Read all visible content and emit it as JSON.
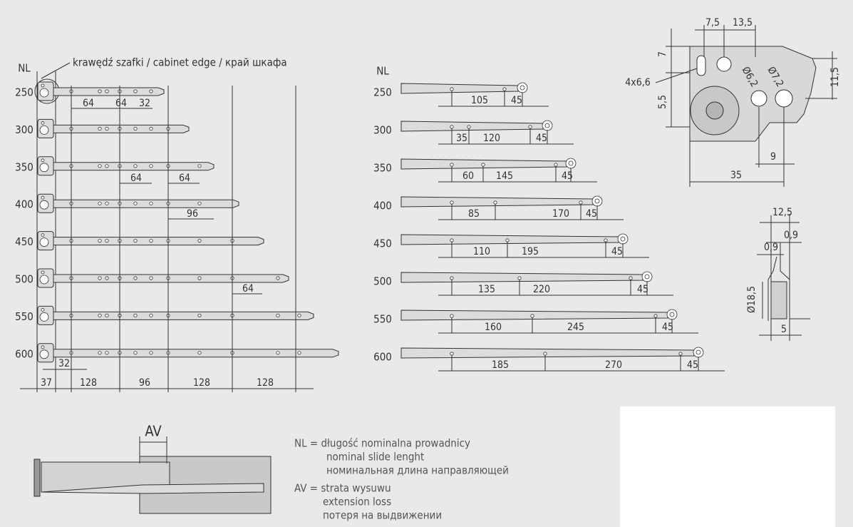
{
  "left_drawing": {
    "nl_label": "NL",
    "edge_label": "krawędź szafki / cabinet edge / край шкафа",
    "lengths": [
      "250",
      "300",
      "350",
      "400",
      "450",
      "500",
      "550",
      "600"
    ],
    "row_dimensions": [
      "64",
      "64",
      "32",
      "64",
      "64",
      "96",
      "64"
    ],
    "bottom_dimensions": [
      "32",
      "37",
      "128",
      "96",
      "128",
      "128"
    ]
  },
  "right_drawing": {
    "nl_label": "NL",
    "rows": [
      {
        "length": "250",
        "dims": [
          "105",
          "45"
        ]
      },
      {
        "length": "300",
        "dims": [
          "35",
          "120",
          "45"
        ]
      },
      {
        "length": "350",
        "dims": [
          "60",
          "145",
          "45"
        ]
      },
      {
        "length": "400",
        "dims": [
          "85",
          "170",
          "45"
        ]
      },
      {
        "length": "450",
        "dims": [
          "110",
          "195",
          "45"
        ]
      },
      {
        "length": "500",
        "dims": [
          "135",
          "220",
          "45"
        ]
      },
      {
        "length": "550",
        "dims": [
          "160",
          "245",
          "45"
        ]
      },
      {
        "length": "600",
        "dims": [
          "185",
          "270",
          "45"
        ]
      }
    ]
  },
  "bracket_detail": {
    "dims": [
      "7,5",
      "13,5",
      "7",
      "11,5",
      "4x6,6",
      "5,5",
      "Ø6,2",
      "Ø7,2",
      "9",
      "35"
    ]
  },
  "profile_detail": {
    "dims": [
      "12,5",
      "0,9",
      "0,9",
      "Ø18,5",
      "5"
    ]
  },
  "extension_loss": {
    "label": "AV"
  },
  "legend": {
    "lines": [
      "NL = długość nominalna prowadnicy",
      "nominal slide lenght",
      "номинальная длина направляющей",
      "AV = strata wysuwu",
      "extension loss",
      "потеря на выдвижении"
    ]
  }
}
